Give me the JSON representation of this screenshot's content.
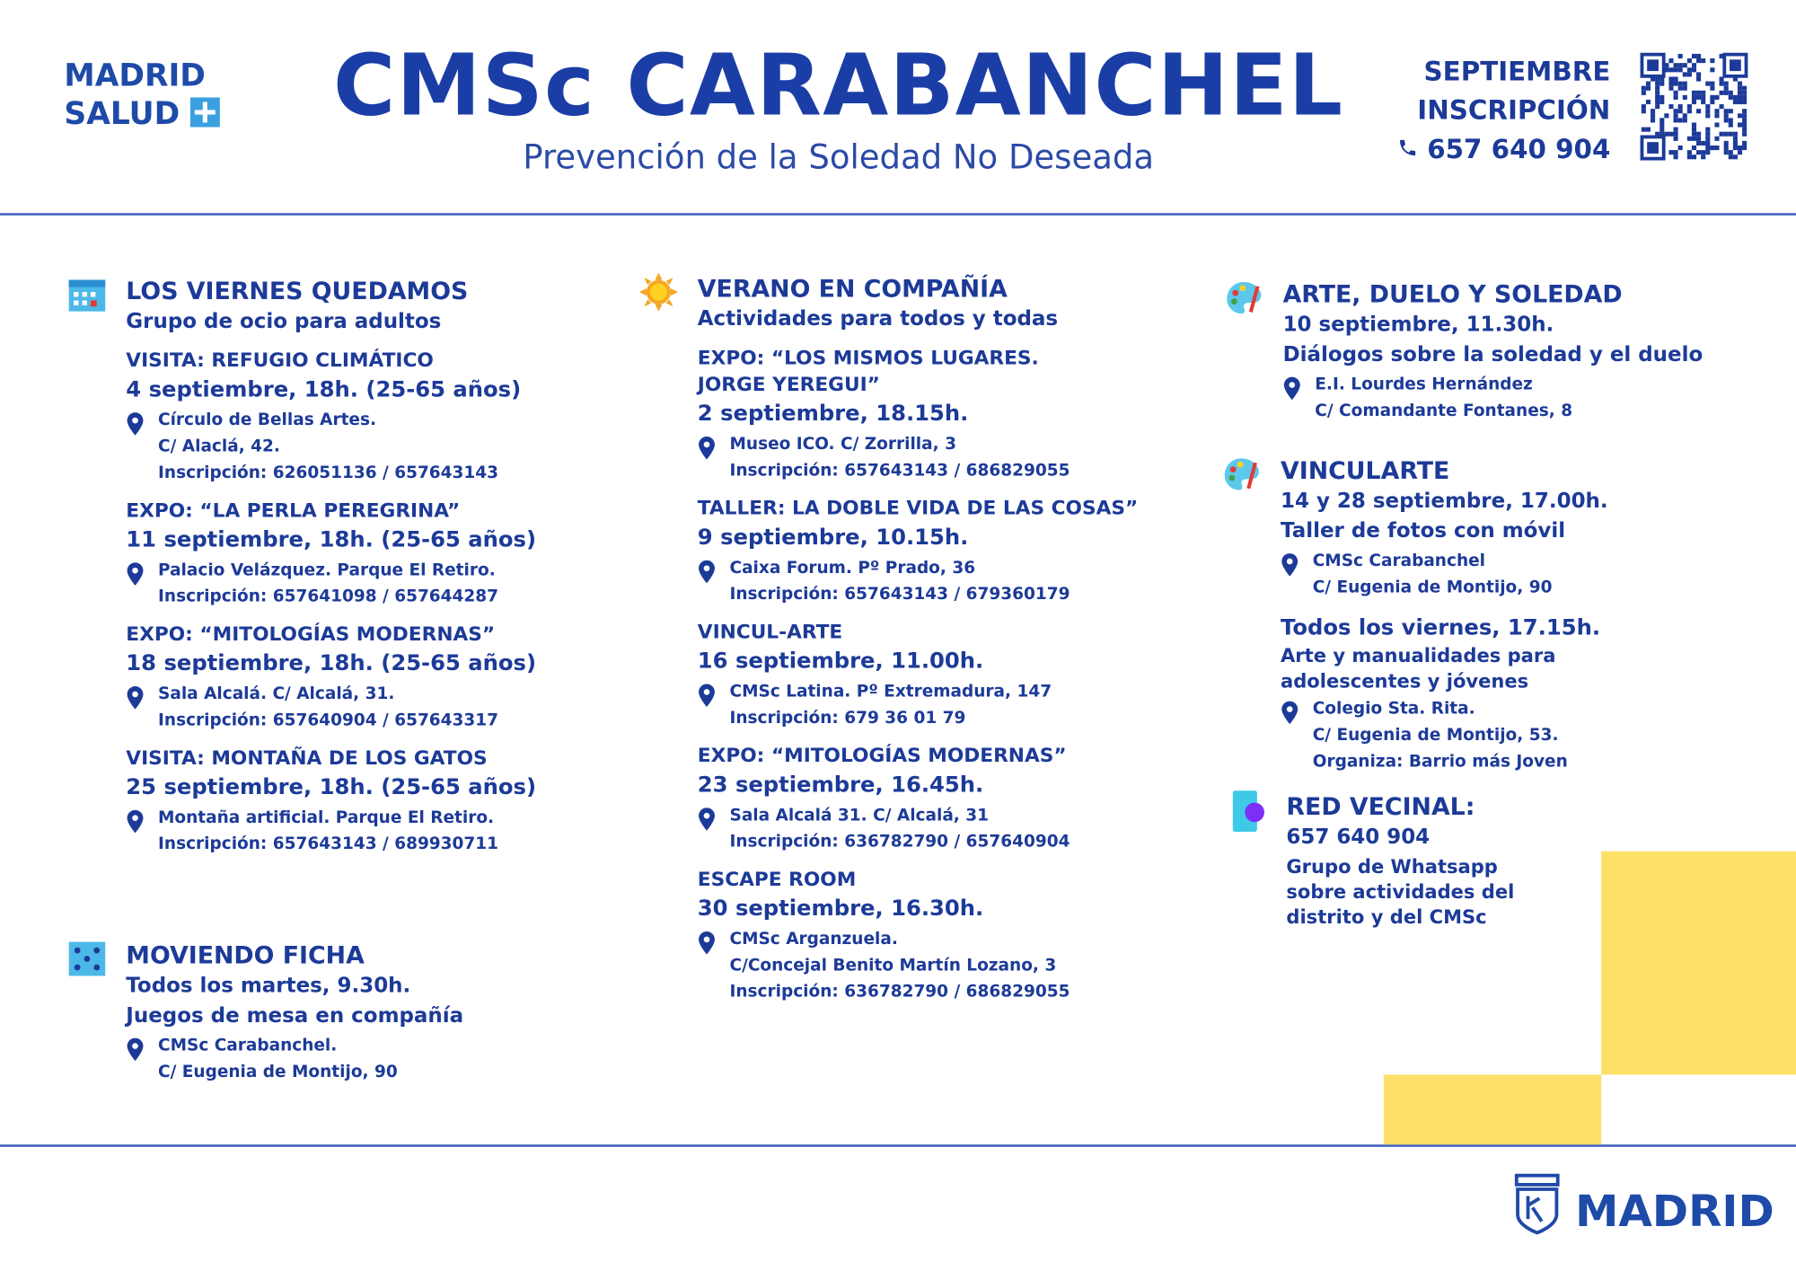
{
  "header": {
    "logo": [
      "MADRID",
      "SALUD"
    ],
    "title": "CMSc CARABANCHEL",
    "subtitle": "Prevención de la Soledad No Deseada",
    "registration": {
      "month": "SEPTIEMBRE",
      "label": "INSCRIPCIÓN",
      "phone": "657 640 904"
    }
  },
  "columns": [
    {
      "sections": [
        {
          "title": "LOS VIERNES QUEDAMOS",
          "lines": [
            "Grupo de ocio para adultos"
          ],
          "events": [
            {
              "name": [
                "VISITA: REFUGIO CLIMÁTICO"
              ],
              "date": "4 septiembre, 18h. (25-65 años)",
              "place": [
                "Círculo de Bellas Artes.",
                "C/ Alaclá, 42.",
                "Inscripción: 626051136 / 657643143"
              ]
            },
            {
              "name": [
                "EXPO: “LA PERLA PEREGRINA”"
              ],
              "date": "11 septiembre, 18h. (25-65 años)",
              "place": [
                "Palacio Velázquez.  Parque El Retiro.",
                "Inscripción: 657641098 / 657644287"
              ]
            },
            {
              "name": [
                "EXPO: “MITOLOGÍAS MODERNAS”"
              ],
              "date": "18 septiembre, 18h. (25-65 años)",
              "place": [
                "Sala Alcalá. C/ Alcalá, 31.",
                "Inscripción: 657640904 / 657643317"
              ]
            },
            {
              "name": [
                "VISITA: MONTAÑA DE LOS GATOS"
              ],
              "date": "25 septiembre, 18h. (25-65 años)",
              "place": [
                "Montaña artificial. Parque El Retiro.",
                "Inscripción:  657643143 / 689930711"
              ]
            }
          ]
        },
        {
          "title": "MOVIENDO FICHA",
          "lines": [
            "Todos los martes, 9.30h.",
            "Juegos de mesa en compañía"
          ],
          "events": [
            {
              "place": [
                "CMSc Carabanchel.",
                "C/ Eugenia de Montijo, 90"
              ]
            }
          ]
        }
      ]
    },
    {
      "sections": [
        {
          "title": "VERANO EN COMPAÑÍA",
          "lines": [
            "Actividades para todos y todas"
          ],
          "events": [
            {
              "name": [
                "EXPO: “LOS MISMOS LUGARES.",
                "JORGE YEREGUI”"
              ],
              "date": "2 septiembre, 18.15h.",
              "place": [
                "Museo ICO. C/ Zorrilla, 3",
                "Inscripción: 657643143 / 686829055"
              ]
            },
            {
              "name": [
                "TALLER: LA DOBLE VIDA DE LAS COSAS”"
              ],
              "date": "9 septiembre, 10.15h.",
              "place": [
                "Caixa Forum. Pº Prado, 36",
                "Inscripción: 657643143 / 679360179"
              ]
            },
            {
              "name": [
                "VINCUL-ARTE"
              ],
              "date": "16 septiembre, 11.00h.",
              "place": [
                "CMSc Latina. Pº Extremadura, 147",
                "Inscripción: 679 36 01 79"
              ]
            },
            {
              "name": [
                "EXPO: “MITOLOGÍAS MODERNAS”"
              ],
              "date": "23 septiembre, 16.45h.",
              "place": [
                "Sala Alcalá 31. C/ Alcalá, 31",
                "Inscripción: 636782790 / 657640904"
              ]
            },
            {
              "name": [
                "ESCAPE ROOM"
              ],
              "date": "30 septiembre, 16.30h.",
              "place": [
                "CMSc Arganzuela.",
                "C/Concejal Benito Martín Lozano, 3",
                "Inscripción:  636782790 / 686829055"
              ]
            }
          ]
        }
      ]
    },
    {
      "sections": [
        {
          "title": "ARTE, DUELO Y SOLEDAD",
          "lines": [
            "10 septiembre, 11.30h.",
            "Diálogos sobre la soledad y el duelo"
          ],
          "events": [
            {
              "place": [
                "E.I. Lourdes Hernández",
                "C/ Comandante Fontanes, 8"
              ]
            }
          ]
        },
        {
          "title": "VINCULARTE",
          "lines": [
            "14 y 28 septiembre, 17.00h.",
            "Taller de fotos con móvil"
          ],
          "events": [
            {
              "place": [
                "CMSc Carabanchel",
                "C/ Eugenia de Montijo, 90"
              ]
            },
            {
              "date": "Todos los viernes, 17.15h.",
              "details": [
                "Arte y manualidades para",
                "adolescentes y jóvenes"
              ],
              "place": [
                "Colegio Sta. Rita.",
                "C/ Eugenia de Montijo, 53.",
                "Organiza: Barrio más Joven"
              ]
            }
          ]
        },
        {
          "title": "RED VECINAL:",
          "lines": [
            "657 640 904"
          ],
          "events": [
            {
              "details": [
                "Grupo de Whatsapp",
                "sobre actividades del",
                "distrito y del CMSc"
              ]
            }
          ]
        }
      ]
    }
  ],
  "footer": {
    "logo": "MADRID"
  }
}
